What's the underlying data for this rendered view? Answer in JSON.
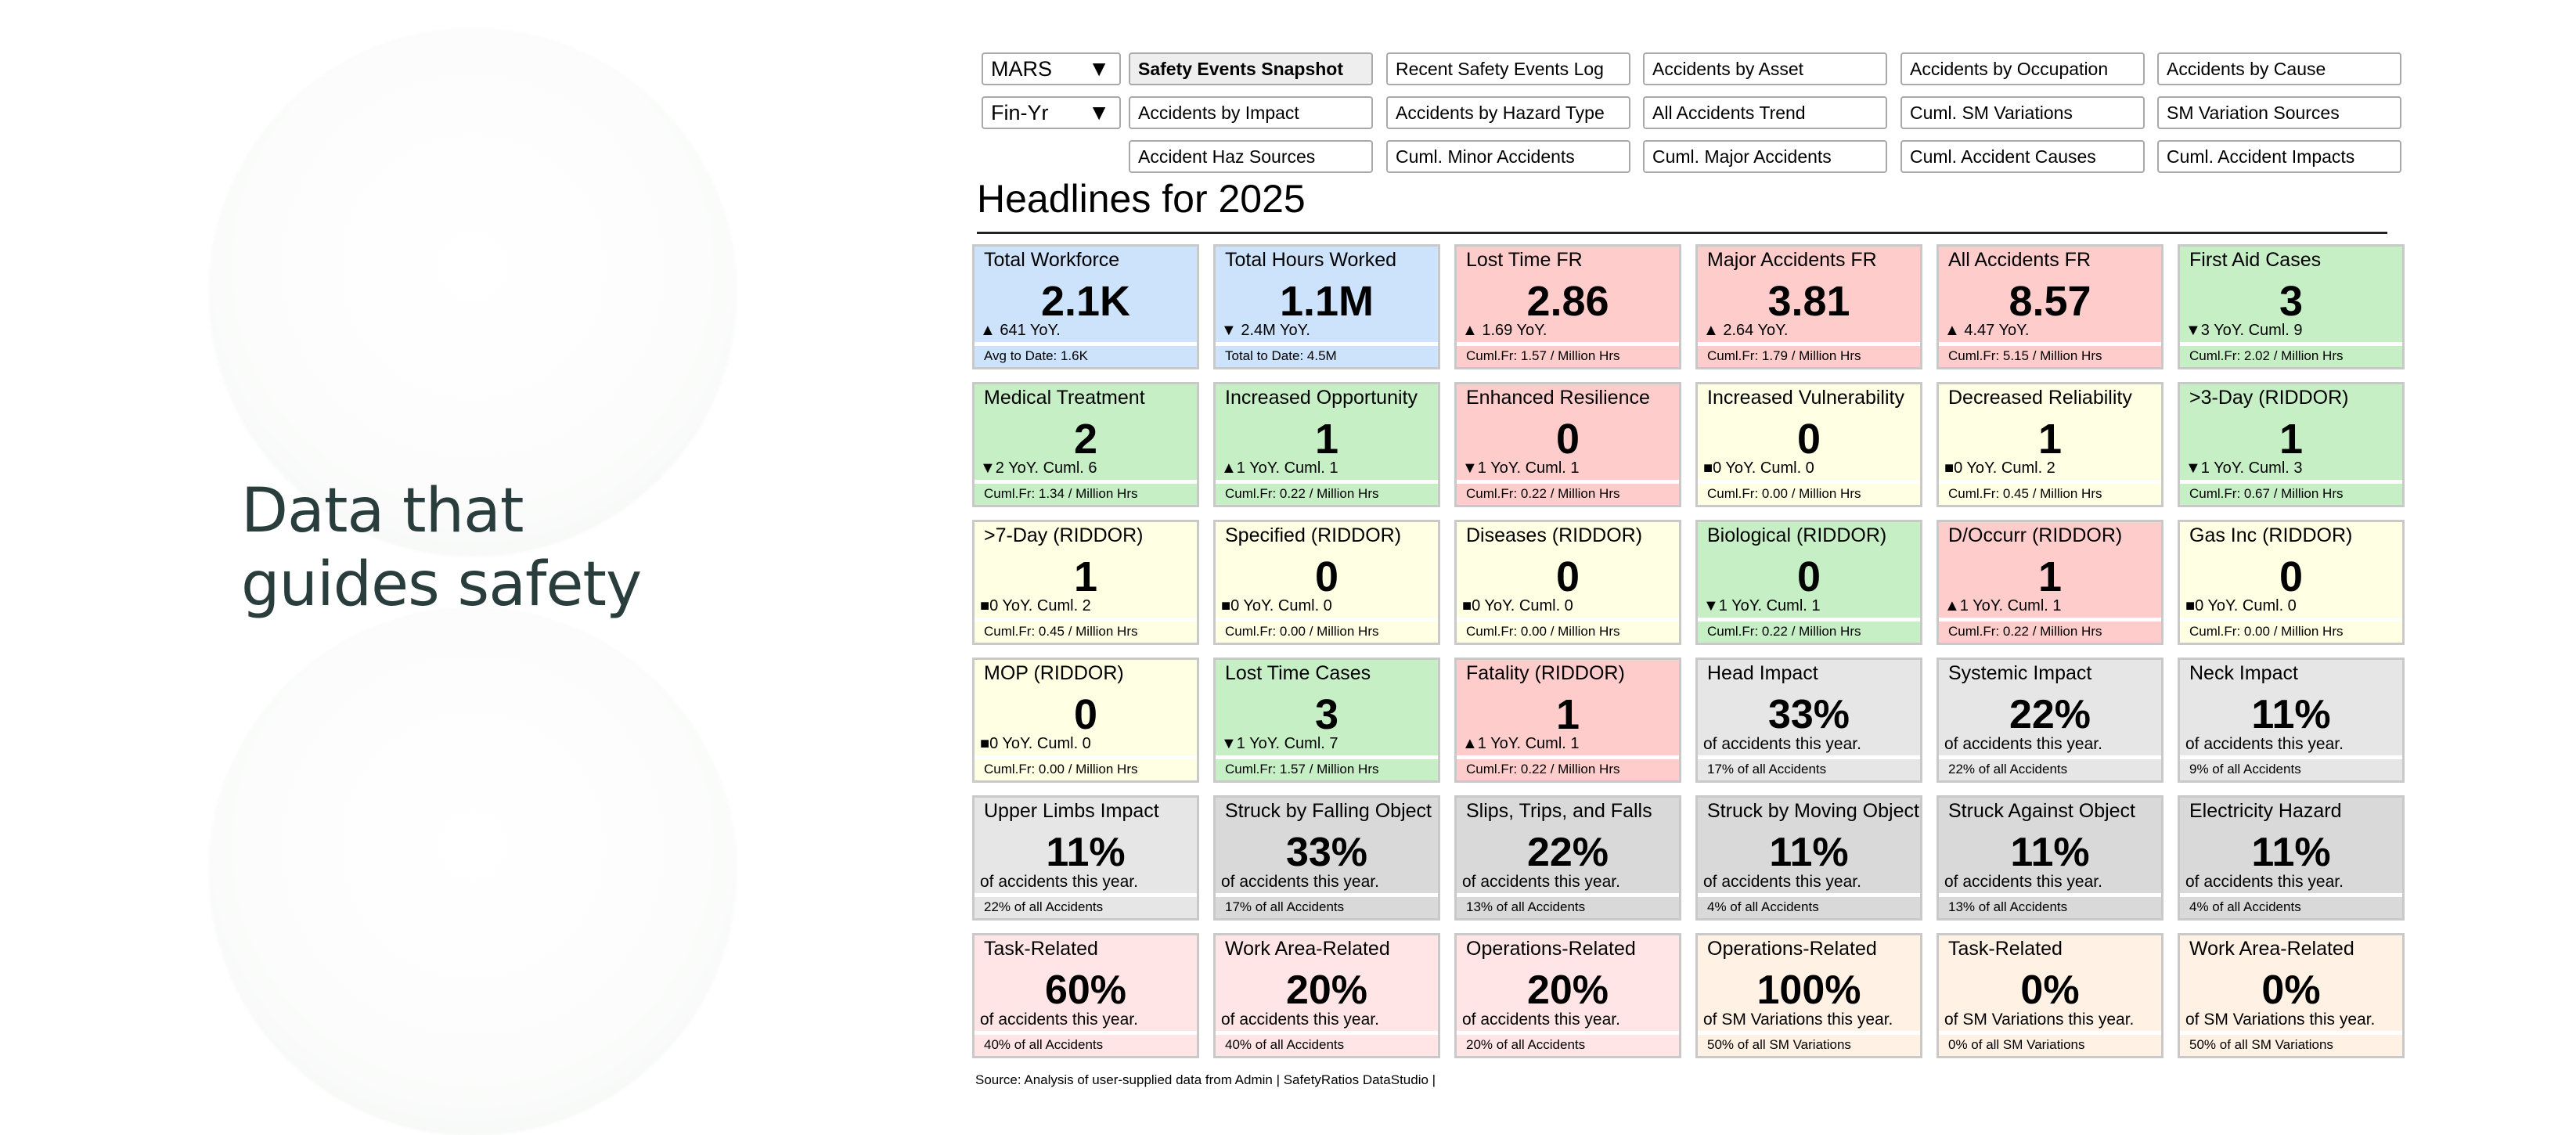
{
  "hero": {
    "line1": "Data that",
    "line2": "guides safety"
  },
  "filters": [
    {
      "value": "MARS",
      "arrow": "▼"
    },
    {
      "value": "Fin-Yr",
      "arrow": "▼"
    }
  ],
  "nav": {
    "row1": [
      "Safety Events Snapshot",
      "Recent Safety Events Log",
      "Accidents by Asset",
      "Accidents by Occupation",
      "Accidents by Cause"
    ],
    "row2": [
      "Accidents by Impact",
      "Accidents by Hazard Type",
      "All Accidents Trend",
      "Cuml. SM Variations",
      "SM Variation Sources"
    ],
    "row3": [
      "Accident Haz Sources",
      "Cuml. Minor Accidents",
      "Cuml. Major Accidents",
      "Cuml. Accident Causes",
      "Cuml. Accident Impacts"
    ],
    "active": "Safety Events Snapshot"
  },
  "headline": "Headlines for 2025",
  "colors": {
    "blue": "#cce3fb",
    "red": "#ffcccc",
    "green": "#c6efc6",
    "yellow": "#ffffe3",
    "gray": "#e6e6e6",
    "dgray": "#d9d9d9",
    "pink": "#ffe5e5",
    "peach": "#fff1e3"
  },
  "cards": [
    [
      {
        "title": "Total Workforce",
        "value": "2.1K",
        "yoy": "▲ 641 YoY.",
        "note": "Avg to Date: 1.6K",
        "color": "blue"
      },
      {
        "title": "Total Hours Worked",
        "value": "1.1M",
        "yoy": "▼ 2.4M YoY.",
        "note": "Total to Date: 4.5M",
        "color": "blue"
      },
      {
        "title": "Lost Time FR",
        "value": "2.86",
        "yoy": "▲ 1.69 YoY.",
        "note": "Cuml.Fr: 1.57 / Million Hrs",
        "color": "red"
      },
      {
        "title": "Major Accidents FR",
        "value": "3.81",
        "yoy": "▲ 2.64 YoY.",
        "note": "Cuml.Fr: 1.79 / Million Hrs",
        "color": "red"
      },
      {
        "title": "All Accidents FR",
        "value": "8.57",
        "yoy": "▲ 4.47 YoY.",
        "note": "Cuml.Fr: 5.15 / Million Hrs",
        "color": "red"
      },
      {
        "title": "First Aid Cases",
        "value": "3",
        "yoy": "▼3 YoY. Cuml. 9",
        "note": "Cuml.Fr: 2.02 / Million Hrs",
        "color": "green"
      }
    ],
    [
      {
        "title": "Medical Treatment",
        "value": "2",
        "yoy": "▼2 YoY. Cuml. 6",
        "note": "Cuml.Fr: 1.34 / Million Hrs",
        "color": "green"
      },
      {
        "title": "Increased Opportunity",
        "value": "1",
        "yoy": "▲1 YoY. Cuml. 1",
        "note": "Cuml.Fr: 0.22 / Million Hrs",
        "color": "green"
      },
      {
        "title": "Enhanced Resilience",
        "value": "0",
        "yoy": "▼1 YoY. Cuml. 1",
        "note": "Cuml.Fr: 0.22 / Million Hrs",
        "color": "red"
      },
      {
        "title": "Increased Vulnerability",
        "value": "0",
        "yoy": "■0 YoY. Cuml. 0",
        "note": "Cuml.Fr: 0.00 / Million Hrs",
        "color": "yellow"
      },
      {
        "title": "Decreased Reliability",
        "value": "1",
        "yoy": "■0 YoY. Cuml. 2",
        "note": "Cuml.Fr: 0.45 / Million Hrs",
        "color": "yellow"
      },
      {
        "title": ">3-Day (RIDDOR)",
        "value": "1",
        "yoy": "▼1 YoY. Cuml. 3",
        "note": "Cuml.Fr: 0.67 / Million Hrs",
        "color": "green"
      }
    ],
    [
      {
        "title": ">7-Day (RIDDOR)",
        "value": "1",
        "yoy": "■0 YoY. Cuml. 2",
        "note": "Cuml.Fr: 0.45 / Million Hrs",
        "color": "yellow"
      },
      {
        "title": "Specified (RIDDOR)",
        "value": "0",
        "yoy": "■0 YoY. Cuml. 0",
        "note": "Cuml.Fr: 0.00 / Million Hrs",
        "color": "yellow"
      },
      {
        "title": "Diseases (RIDDOR)",
        "value": "0",
        "yoy": "■0 YoY. Cuml. 0",
        "note": "Cuml.Fr: 0.00 / Million Hrs",
        "color": "yellow"
      },
      {
        "title": "Biological (RIDDOR)",
        "value": "0",
        "yoy": "▼1 YoY. Cuml. 1",
        "note": "Cuml.Fr: 0.22 / Million Hrs",
        "color": "green"
      },
      {
        "title": "D/Occurr (RIDDOR)",
        "value": "1",
        "yoy": "▲1 YoY. Cuml. 1",
        "note": "Cuml.Fr: 0.22 / Million Hrs",
        "color": "red"
      },
      {
        "title": "Gas Inc (RIDDOR)",
        "value": "0",
        "yoy": "■0 YoY. Cuml. 0",
        "note": "Cuml.Fr: 0.00 / Million Hrs",
        "color": "yellow"
      }
    ],
    [
      {
        "title": "MOP (RIDDOR)",
        "value": "0",
        "yoy": "■0 YoY. Cuml. 0",
        "note": "Cuml.Fr: 0.00 / Million Hrs",
        "color": "yellow"
      },
      {
        "title": "Lost Time Cases",
        "value": "3",
        "yoy": "▼1 YoY. Cuml. 7",
        "note": "Cuml.Fr: 1.57 / Million Hrs",
        "color": "green"
      },
      {
        "title": "Fatality (RIDDOR)",
        "value": "1",
        "yoy": "▲1 YoY. Cuml. 1",
        "note": "Cuml.Fr: 0.22 / Million Hrs",
        "color": "red"
      },
      {
        "title": "Head Impact",
        "value": "33%",
        "yoy": "of accidents this year.",
        "note": "17% of all Accidents",
        "color": "gray",
        "pct": true
      },
      {
        "title": "Systemic Impact",
        "value": "22%",
        "yoy": "of accidents this year.",
        "note": "22% of all Accidents",
        "color": "gray",
        "pct": true
      },
      {
        "title": "Neck Impact",
        "value": "11%",
        "yoy": "of accidents this year.",
        "note": "9% of all Accidents",
        "color": "gray",
        "pct": true
      }
    ],
    [
      {
        "title": "Upper Limbs Impact",
        "value": "11%",
        "yoy": "of accidents this year.",
        "note": "22% of all Accidents",
        "color": "gray",
        "pct": true
      },
      {
        "title": "Struck by Falling Object",
        "value": "33%",
        "yoy": "of accidents this year.",
        "note": "17% of all Accidents",
        "color": "dgray",
        "pct": true
      },
      {
        "title": "Slips, Trips, and Falls",
        "value": "22%",
        "yoy": "of accidents this year.",
        "note": "13% of all Accidents",
        "color": "dgray",
        "pct": true
      },
      {
        "title": "Struck by Moving Object",
        "value": "11%",
        "yoy": "of accidents this year.",
        "note": "4% of all Accidents",
        "color": "dgray",
        "pct": true
      },
      {
        "title": "Struck Against Object",
        "value": "11%",
        "yoy": "of accidents this year.",
        "note": "13% of all Accidents",
        "color": "dgray",
        "pct": true
      },
      {
        "title": "Electricity Hazard",
        "value": "11%",
        "yoy": "of accidents this year.",
        "note": "4% of all Accidents",
        "color": "dgray",
        "pct": true
      }
    ],
    [
      {
        "title": "Task-Related",
        "value": "60%",
        "yoy": "of accidents this year.",
        "note": "40% of all Accidents",
        "color": "pink",
        "pct": true
      },
      {
        "title": "Work Area-Related",
        "value": "20%",
        "yoy": "of accidents this year.",
        "note": "40% of all Accidents",
        "color": "pink",
        "pct": true
      },
      {
        "title": "Operations-Related",
        "value": "20%",
        "yoy": "of accidents this year.",
        "note": "20% of all Accidents",
        "color": "pink",
        "pct": true
      },
      {
        "title": "Operations-Related",
        "value": "100%",
        "yoy": "of SM Variations this year.",
        "note": "50% of all SM Variations",
        "color": "peach",
        "pct": true
      },
      {
        "title": "Task-Related",
        "value": "0%",
        "yoy": "of SM Variations this year.",
        "note": "0% of all SM Variations",
        "color": "peach",
        "pct": true
      },
      {
        "title": "Work Area-Related",
        "value": "0%",
        "yoy": "of SM Variations this year.",
        "note": "50% of all SM Variations",
        "color": "peach",
        "pct": true
      }
    ]
  ],
  "source": "Source: Analysis of user-supplied data from Admin | SafetyRatios DataStudio |"
}
